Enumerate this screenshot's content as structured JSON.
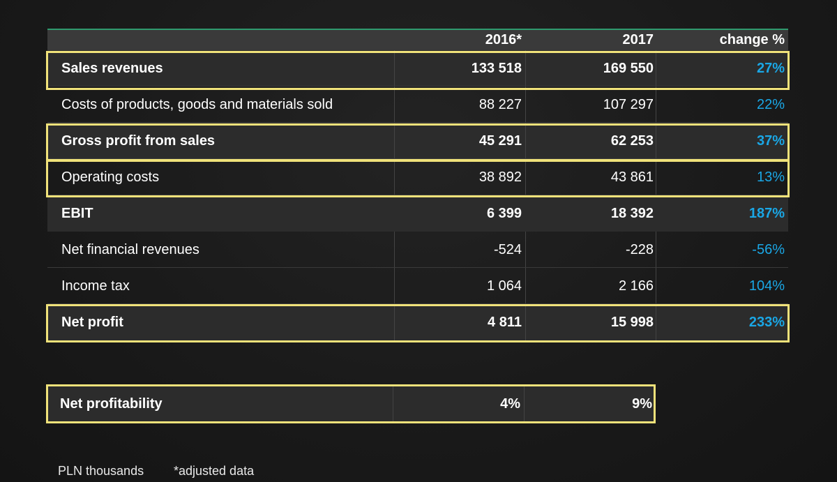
{
  "header": {
    "col_2016": "2016*",
    "col_2017": "2017",
    "col_change": "change %"
  },
  "rows": [
    {
      "label": "Sales revenues",
      "v2016": "133 518",
      "v2017": "169 550",
      "change": "27%"
    },
    {
      "label": "Costs of products, goods and materials sold",
      "v2016": "88 227",
      "v2017": "107 297",
      "change": "22%"
    },
    {
      "label": "Gross profit from sales",
      "v2016": "45 291",
      "v2017": "62 253",
      "change": "37%"
    },
    {
      "label": "Operating costs",
      "v2016": "38 892",
      "v2017": "43 861",
      "change": "13%"
    },
    {
      "label": "EBIT",
      "v2016": "6 399",
      "v2017": "18 392",
      "change": "187%"
    },
    {
      "label": "Net financial revenues",
      "v2016": "-524",
      "v2017": "-228",
      "change": "-56%"
    },
    {
      "label": "Income tax",
      "v2016": "1 064",
      "v2017": "2 166",
      "change": "104%"
    },
    {
      "label": "Net profit",
      "v2016": "4 811",
      "v2017": "15 998",
      "change": "233%"
    }
  ],
  "profitability": {
    "label": "Net profitability",
    "v2016": "4%",
    "v2017": "9%"
  },
  "footer": {
    "unit": "PLN thousands",
    "note": "*adjusted data"
  },
  "colors": {
    "highlight": "#f0e27a",
    "change_blue": "#1aa7e6",
    "top_line": "#2f9a6e",
    "background": "#1a1a1a"
  }
}
